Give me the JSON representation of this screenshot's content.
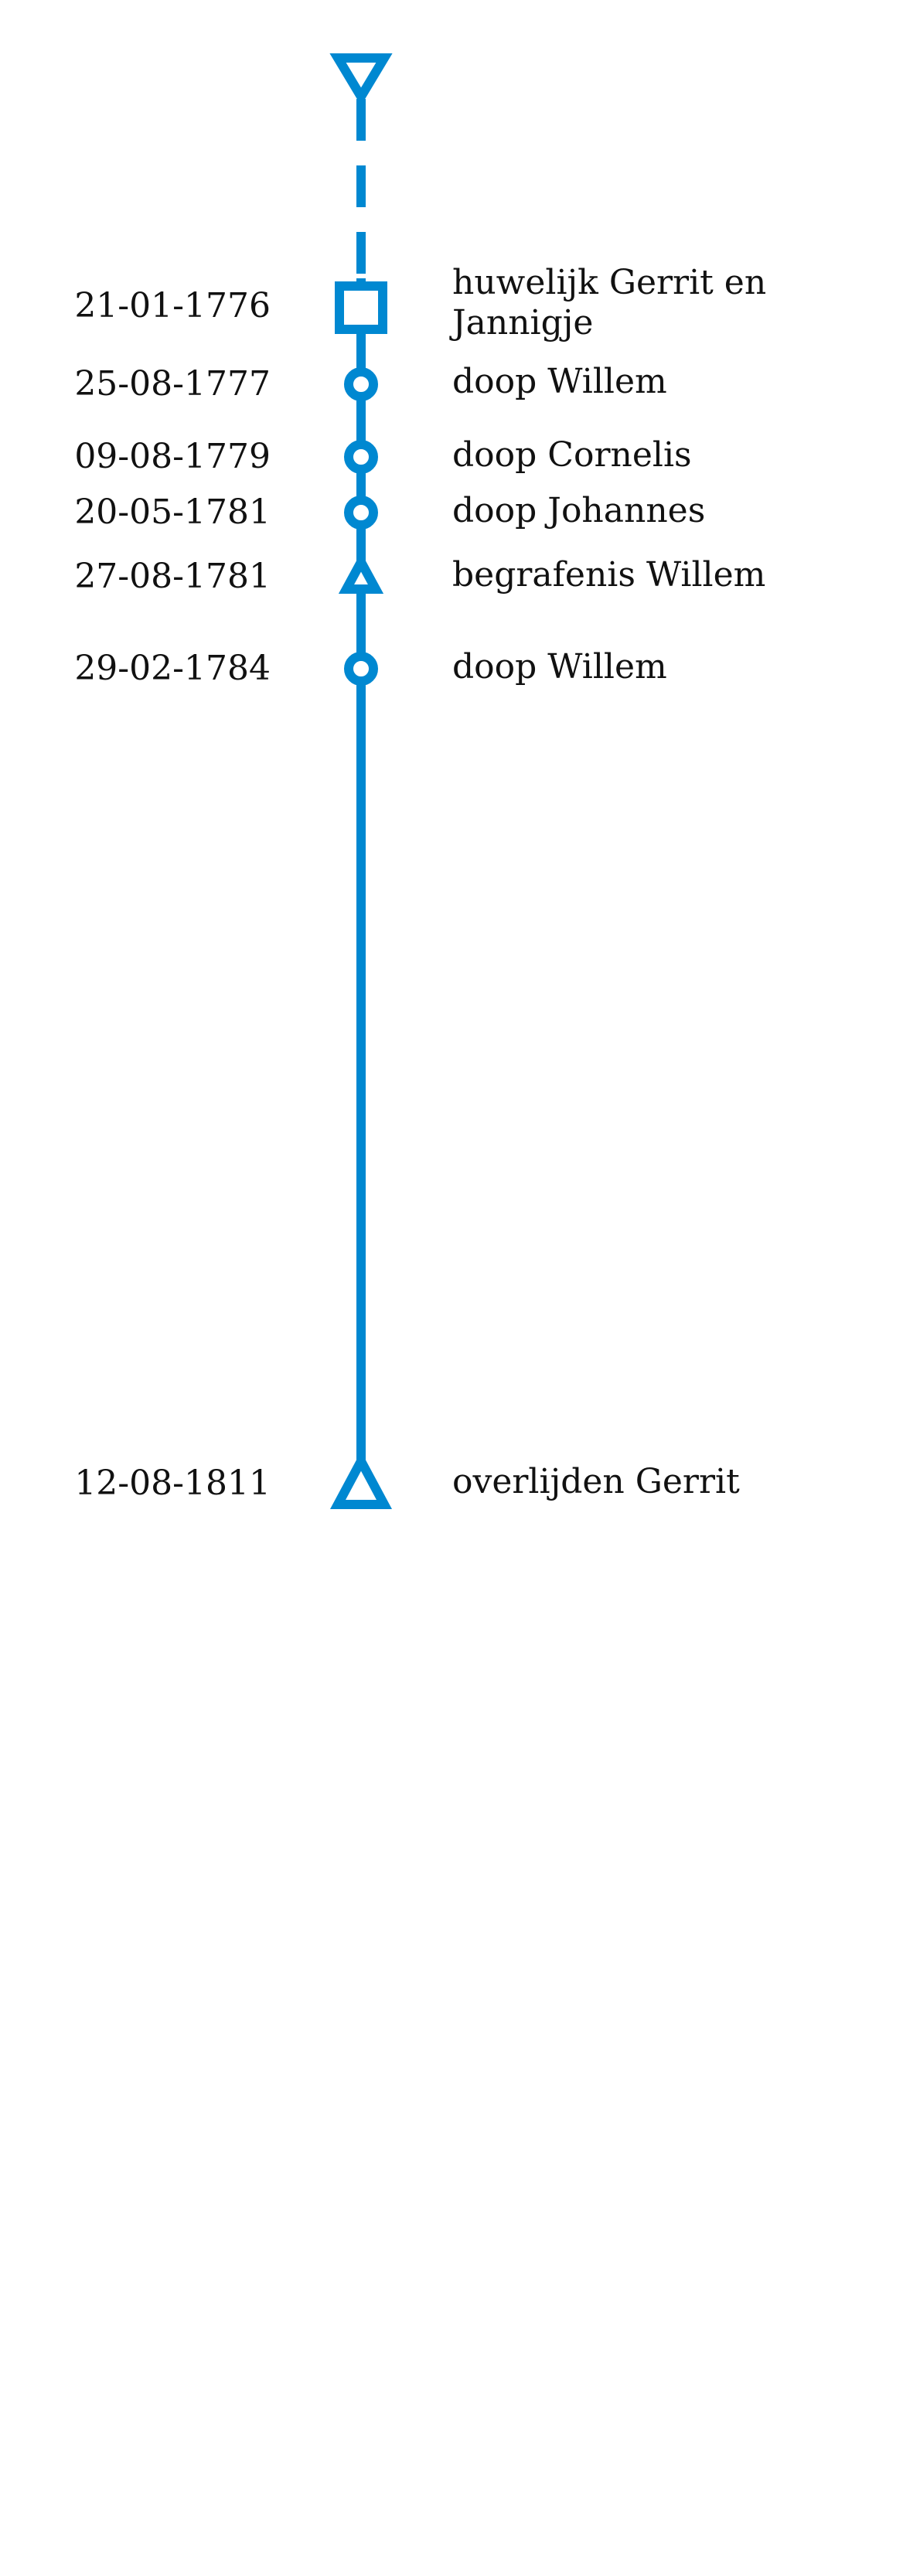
{
  "line_color": "#0088d1",
  "start_marker": {
    "icon": "triangle-down-icon"
  },
  "events": [
    {
      "date": "21-01-1776",
      "label": "huwelijk Gerrit en Jannigje",
      "icon": "square-icon"
    },
    {
      "date": "25-08-1777",
      "label": "doop Willem",
      "icon": "circle-icon"
    },
    {
      "date": "09-08-1779",
      "label": "doop Cornelis",
      "icon": "circle-icon"
    },
    {
      "date": "20-05-1781",
      "label": "doop Johannes",
      "icon": "circle-icon"
    },
    {
      "date": "27-08-1781",
      "label": "begrafenis Willem",
      "icon": "small-triangle-up-icon"
    },
    {
      "date": "29-02-1784",
      "label": "doop Willem",
      "icon": "circle-icon"
    },
    {
      "date": "12-08-1811",
      "label": "overlijden Gerrit",
      "icon": "triangle-up-icon"
    }
  ]
}
